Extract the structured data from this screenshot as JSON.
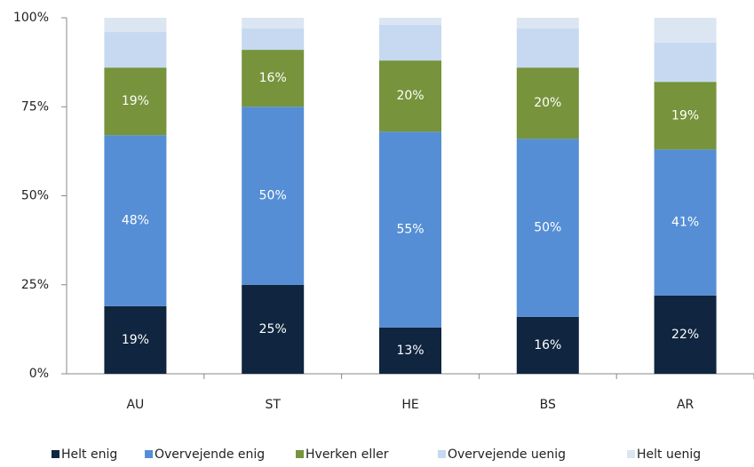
{
  "chart_data": {
    "type": "stacked_bar",
    "categories": [
      "AU",
      "ST",
      "HE",
      "BS",
      "AR"
    ],
    "series": [
      {
        "name": "Helt enig",
        "color": "#10253f",
        "values": [
          19,
          25,
          13,
          16,
          22
        ],
        "value_labels": [
          "19%",
          "25%",
          "13%",
          "16%",
          "22%"
        ]
      },
      {
        "name": "Overvejende enig",
        "color": "#558ed5",
        "values": [
          48,
          50,
          55,
          50,
          41
        ],
        "value_labels": [
          "48%",
          "50%",
          "55%",
          "50%",
          "41%"
        ]
      },
      {
        "name": "Hverken eller",
        "color": "#77933c",
        "values": [
          19,
          16,
          20,
          20,
          19
        ],
        "value_labels": [
          "19%",
          "16%",
          "20%",
          "20%",
          "19%"
        ]
      },
      {
        "name": "Overvejende uenig",
        "color": "#c6d9f1",
        "values": [
          10,
          6,
          10,
          11,
          11
        ]
      },
      {
        "name": "Helt uenig",
        "color": "#dce6f2",
        "values": [
          4,
          3,
          2,
          3,
          7
        ]
      }
    ],
    "ylim": [
      0,
      100
    ],
    "yticks": [
      {
        "value": 0,
        "label": "0%"
      },
      {
        "value": 25,
        "label": "25%"
      },
      {
        "value": 50,
        "label": "50%"
      },
      {
        "value": 75,
        "label": "75%"
      },
      {
        "value": 100,
        "label": "100%"
      }
    ],
    "legend": "bottom"
  }
}
